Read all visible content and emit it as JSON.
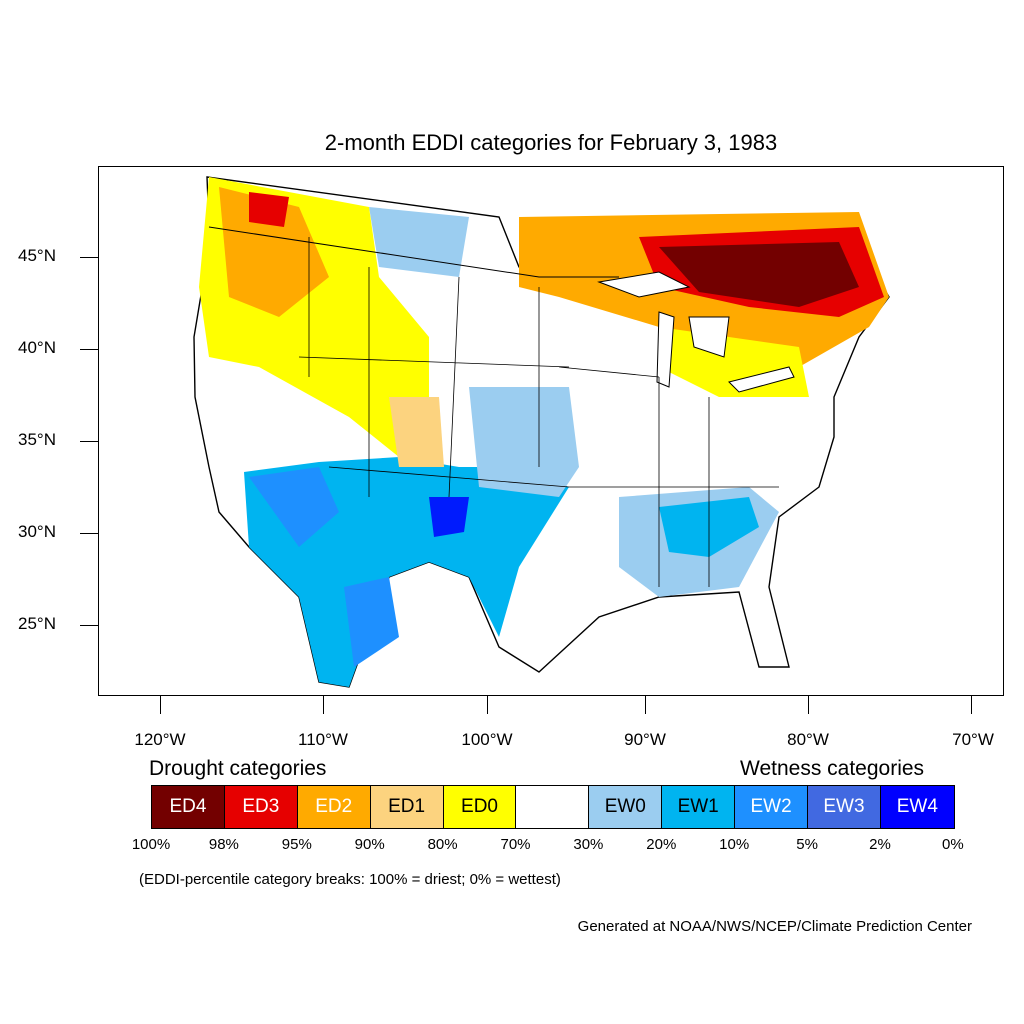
{
  "title": "2-month EDDI categories for February 3, 1983",
  "map": {
    "latitude_labels": [
      "45°N",
      "40°N",
      "35°N",
      "30°N",
      "25°N"
    ],
    "longitude_labels": [
      "120°W",
      "110°W",
      "100°W",
      "90°W",
      "80°W",
      "70°W"
    ]
  },
  "legend": {
    "drought_heading": "Drought categories",
    "wetness_heading": "Wetness categories",
    "categories": [
      {
        "label": "ED4",
        "color": "#730000",
        "text_color": "#ffffff"
      },
      {
        "label": "ED3",
        "color": "#e60000",
        "text_color": "#ffffff"
      },
      {
        "label": "ED2",
        "color": "#ffaa00",
        "text_color": "#ffffff"
      },
      {
        "label": "ED1",
        "color": "#fcd37f",
        "text_color": "#000000"
      },
      {
        "label": "ED0",
        "color": "#ffff00",
        "text_color": "#000000"
      },
      {
        "label": "",
        "color": "#ffffff",
        "text_color": "#000000"
      },
      {
        "label": "EW0",
        "color": "#9bcdf0",
        "text_color": "#000000"
      },
      {
        "label": "EW1",
        "color": "#00b4f0",
        "text_color": "#000000"
      },
      {
        "label": "EW2",
        "color": "#1e90ff",
        "text_color": "#ffffff"
      },
      {
        "label": "EW3",
        "color": "#4169e1",
        "text_color": "#ffffff"
      },
      {
        "label": "EW4",
        "color": "#0000ff",
        "text_color": "#ffffff"
      }
    ],
    "percentiles": [
      "100%",
      "98%",
      "95%",
      "90%",
      "80%",
      "70%",
      "30%",
      "20%",
      "10%",
      "5%",
      "2%",
      "0%"
    ]
  },
  "note": "(EDDI-percentile category breaks: 100% = driest; 0% = wettest)",
  "credit": "Generated at NOAA/NWS/NCEP/Climate Prediction Center"
}
